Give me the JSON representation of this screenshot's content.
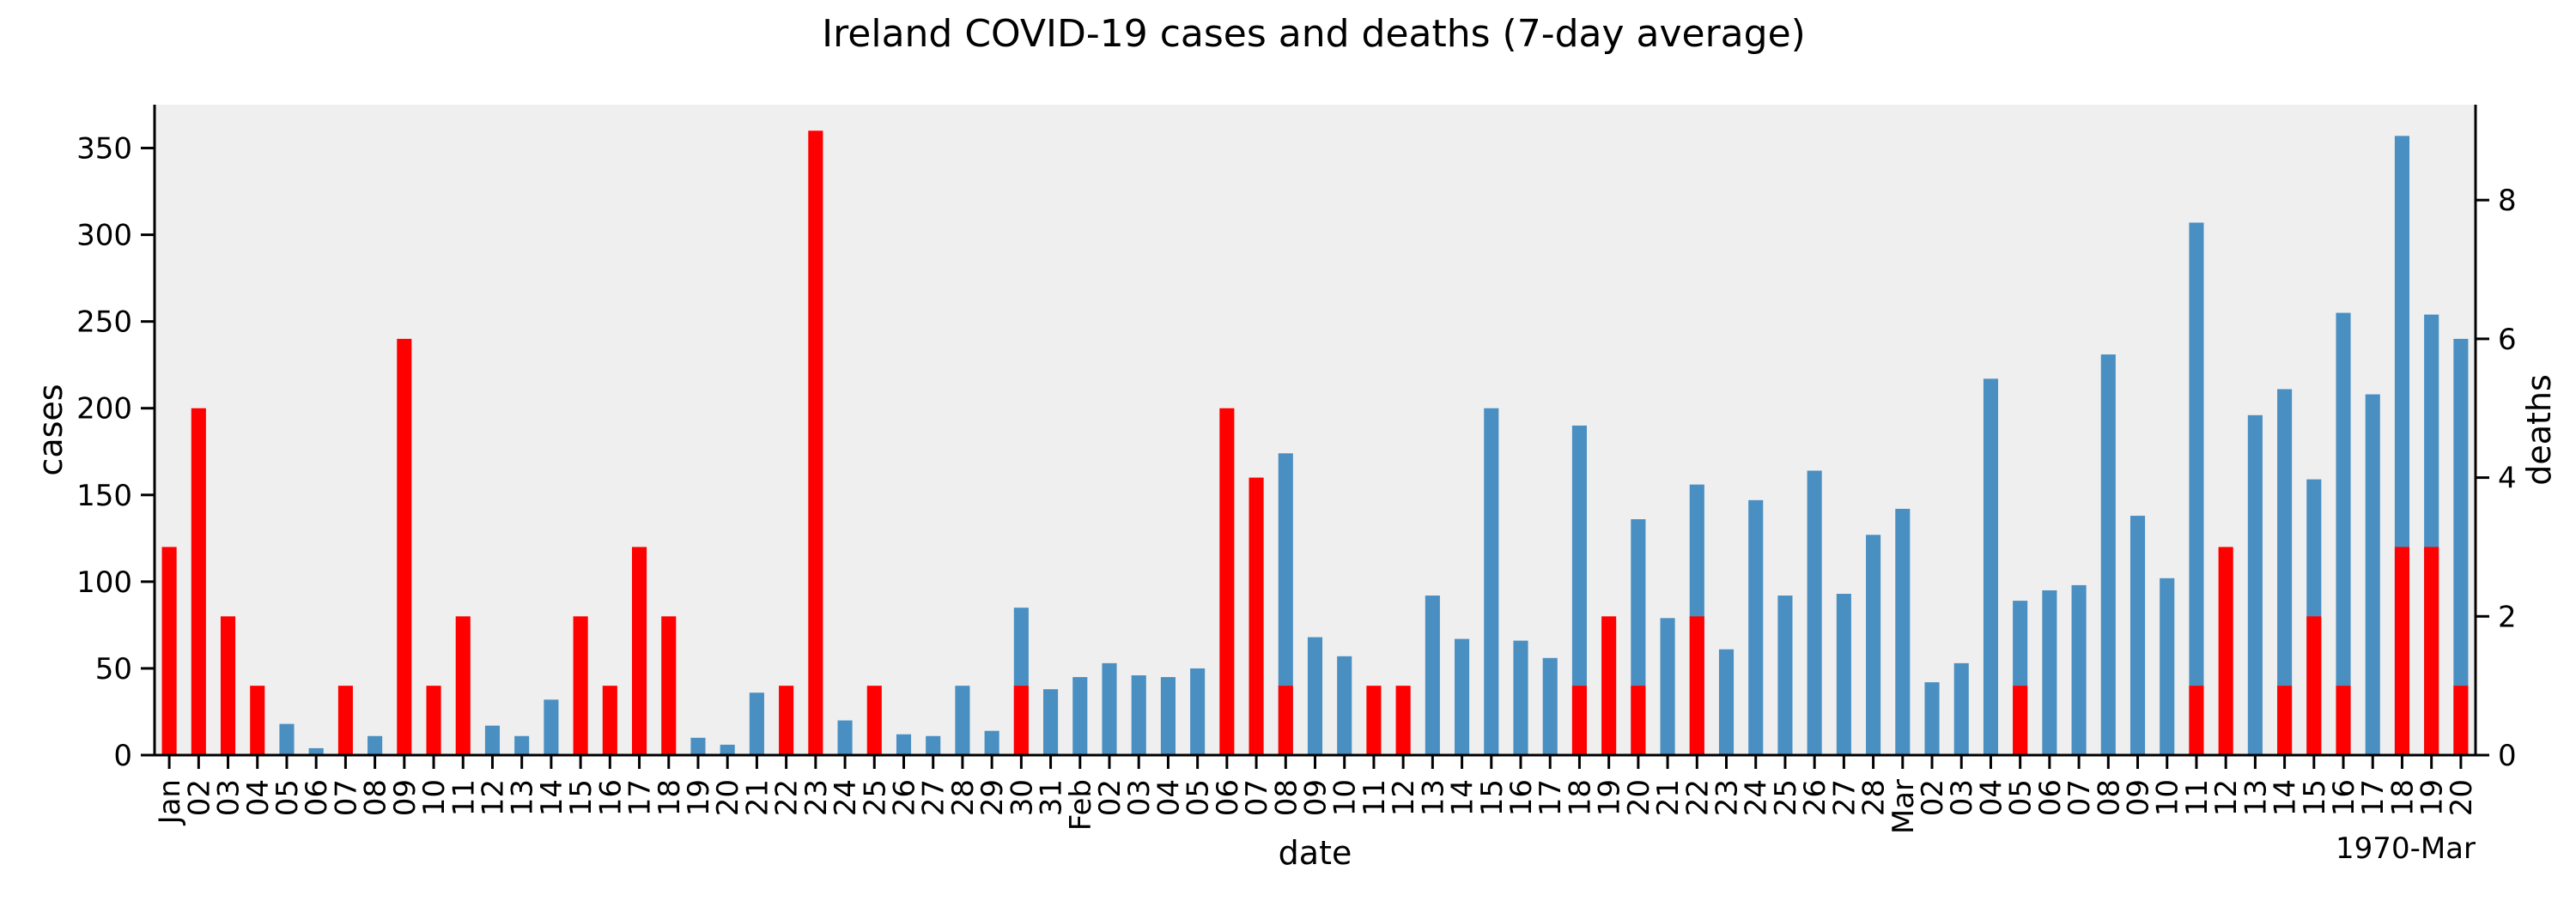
{
  "chart_data": {
    "type": "bar",
    "title": "Ireland COVID-19 cases and deaths (7-day average)",
    "xlabel": "date",
    "ylabel": "cases",
    "y2label": "deaths",
    "corner_label": "1970-Mar",
    "ylim": [
      0,
      375
    ],
    "y2lim": [
      0,
      9.375
    ],
    "y_ticks": [
      0,
      50,
      100,
      150,
      200,
      250,
      300,
      350
    ],
    "y2_ticks": [
      0,
      2,
      4,
      6,
      8
    ],
    "grid": false,
    "colors": {
      "cases": "#4a8fc2",
      "deaths": "#ff0000",
      "plot_bg": "#efefef"
    },
    "x_labels": [
      "Jan",
      "02",
      "03",
      "04",
      "05",
      "06",
      "07",
      "08",
      "09",
      "10",
      "11",
      "12",
      "13",
      "14",
      "15",
      "16",
      "17",
      "18",
      "19",
      "20",
      "21",
      "22",
      "23",
      "24",
      "25",
      "26",
      "27",
      "28",
      "29",
      "30",
      "31",
      "Feb",
      "02",
      "03",
      "04",
      "05",
      "06",
      "07",
      "08",
      "09",
      "10",
      "11",
      "12",
      "13",
      "14",
      "15",
      "16",
      "17",
      "18",
      "19",
      "20",
      "21",
      "22",
      "23",
      "24",
      "25",
      "26",
      "27",
      "28",
      "Mar",
      "02",
      "03",
      "04",
      "05",
      "06",
      "07",
      "08",
      "09",
      "10",
      "11",
      "12",
      "13",
      "14",
      "15",
      "16",
      "17",
      "18",
      "19",
      "20"
    ],
    "series": [
      {
        "name": "cases",
        "axis": "left",
        "values": [
          0,
          0,
          0,
          0,
          18,
          4,
          0,
          11,
          0,
          0,
          0,
          17,
          11,
          32,
          0,
          0,
          0,
          0,
          10,
          6,
          36,
          0,
          0,
          20,
          0,
          12,
          11,
          40,
          14,
          85,
          38,
          45,
          53,
          46,
          45,
          50,
          0,
          0,
          174,
          68,
          57,
          0,
          0,
          92,
          67,
          200,
          66,
          56,
          190,
          0,
          136,
          79,
          156,
          61,
          147,
          92,
          164,
          93,
          127,
          142,
          42,
          53,
          217,
          89,
          95,
          98,
          231,
          138,
          102,
          307,
          0,
          196,
          211,
          159,
          255,
          208,
          357,
          254,
          240
        ]
      },
      {
        "name": "deaths",
        "axis": "right",
        "values": [
          3,
          5,
          2,
          1,
          0,
          0,
          1,
          0,
          6,
          1,
          2,
          0,
          0,
          0,
          2,
          1,
          3,
          2,
          0,
          0,
          0,
          1,
          9,
          0,
          1,
          0,
          0,
          0,
          0,
          1,
          0,
          0,
          0,
          0,
          0,
          0,
          5,
          4,
          1,
          0,
          0,
          1,
          1,
          0,
          0,
          0,
          0,
          0,
          1,
          2,
          1,
          0,
          2,
          0,
          0,
          0,
          0,
          0,
          0,
          0,
          0,
          0,
          0,
          1,
          0,
          0,
          0,
          0,
          0,
          1,
          3,
          0,
          1,
          2,
          1,
          0,
          3,
          3,
          1
        ]
      }
    ]
  }
}
